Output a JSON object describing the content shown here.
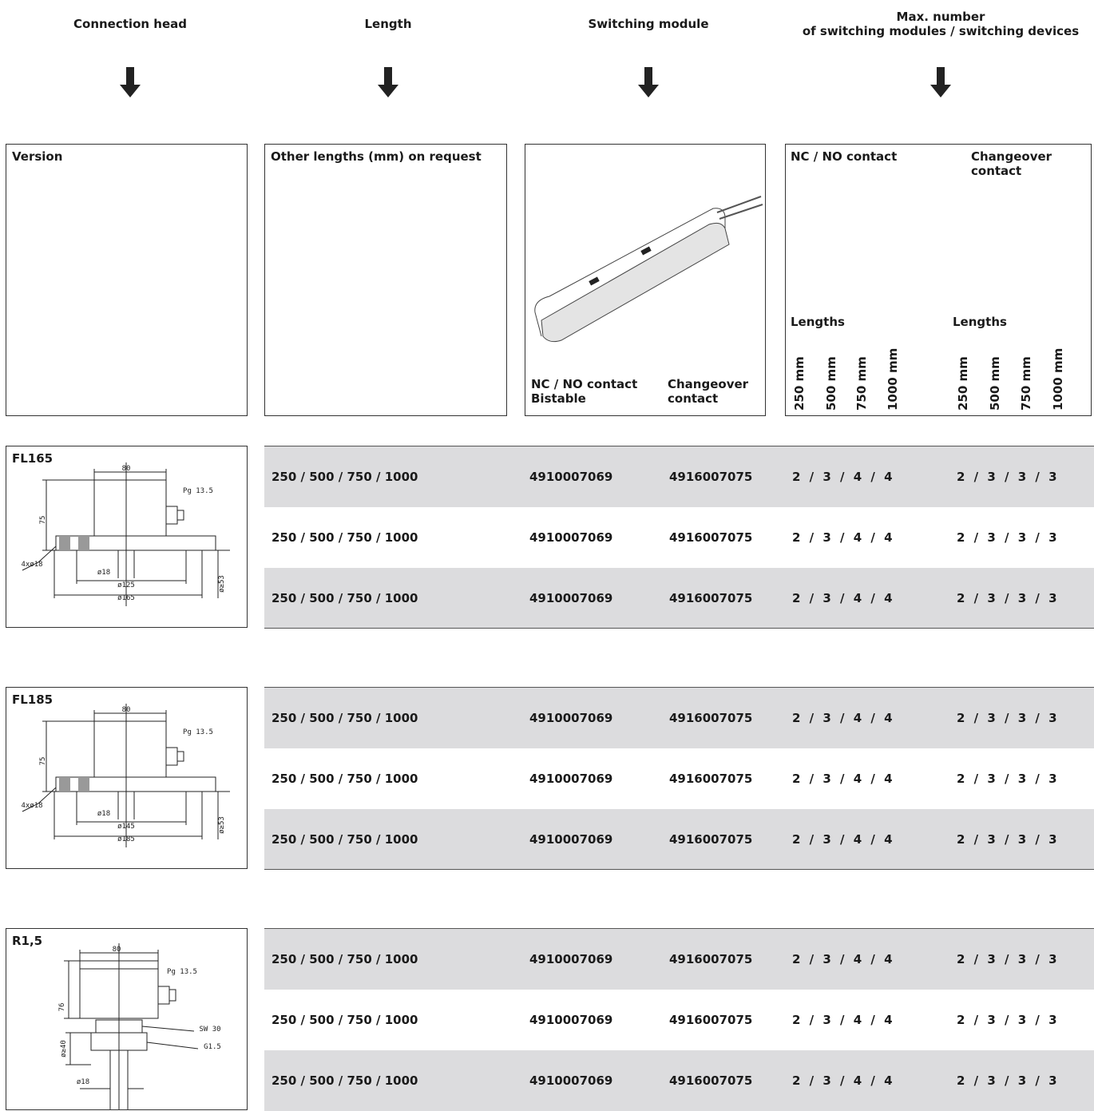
{
  "headers": [
    [
      "Connection head"
    ],
    [
      "Length"
    ],
    [
      "Switching module"
    ],
    [
      "Max. number",
      "of switching modules / switching devices"
    ]
  ],
  "boxes": {
    "version": "Version",
    "length": "Other lengths (mm) on request",
    "module": {
      "columns": [
        [
          "NC / NO contact",
          "Bistable"
        ],
        [
          "Changeover",
          "contact"
        ]
      ]
    },
    "max": {
      "columns": [
        {
          "title": [
            "NC / NO contact"
          ],
          "lengths_label": "Lengths",
          "lengths": [
            "250 mm",
            "500 mm",
            "750 mm",
            "1000 mm"
          ]
        },
        {
          "title": [
            "Changeover",
            "contact"
          ],
          "lengths_label": "Lengths",
          "lengths": [
            "250 mm",
            "500 mm",
            "750 mm",
            "1000 mm"
          ]
        }
      ]
    }
  },
  "groups": [
    {
      "version": "FL165",
      "drawing_labels": [
        "80",
        "Pg 13.5",
        "75",
        "4xø18",
        "ø18",
        "ø125",
        "ø165",
        "ø≥53"
      ],
      "rows": [
        [
          "250 / 500 / 750 / 1000",
          "4910007069",
          "4916007075",
          "2 / 3 / 4 / 4",
          "2 / 3 / 3 / 3"
        ],
        [
          "250 / 500 / 750 / 1000",
          "4910007069",
          "4916007075",
          "2 / 3 / 4 / 4",
          "2 / 3 / 3 / 3"
        ],
        [
          "250 / 500 / 750 / 1000",
          "4910007069",
          "4916007075",
          "2 / 3 / 4 / 4",
          "2 / 3 / 3 / 3"
        ]
      ]
    },
    {
      "version": "FL185",
      "drawing_labels": [
        "80",
        "Pg 13.5",
        "75",
        "4xø18",
        "ø18",
        "ø145",
        "ø185",
        "ø≥53"
      ],
      "rows": [
        [
          "250 / 500 / 750 / 1000",
          "4910007069",
          "4916007075",
          "2 / 3 / 4 / 4",
          "2 / 3 / 3 / 3"
        ],
        [
          "250 / 500 / 750 / 1000",
          "4910007069",
          "4916007075",
          "2 / 3 / 4 / 4",
          "2 / 3 / 3 / 3"
        ],
        [
          "250 / 500 / 750 / 1000",
          "4910007069",
          "4916007075",
          "2 / 3 / 4 / 4",
          "2 / 3 / 3 / 3"
        ]
      ]
    },
    {
      "version": "R1,5",
      "drawing_labels": [
        "80",
        "Pg 13.5",
        "76",
        "SW 30",
        "G1.5",
        "ø≥40",
        "ø18"
      ],
      "rows": [
        [
          "250 / 500 / 750 / 1000",
          "4910007069",
          "4916007075",
          "2 / 3 / 4 / 4",
          "2 / 3 / 3 / 3"
        ],
        [
          "250 / 500 / 750 / 1000",
          "4910007069",
          "4916007075",
          "2 / 3 / 4 / 4",
          "2 / 3 / 3 / 3"
        ],
        [
          "250 / 500 / 750 / 1000",
          "4910007069",
          "4916007075",
          "2 / 3 / 4 / 4",
          "2 / 3 / 3 / 3"
        ]
      ]
    }
  ]
}
